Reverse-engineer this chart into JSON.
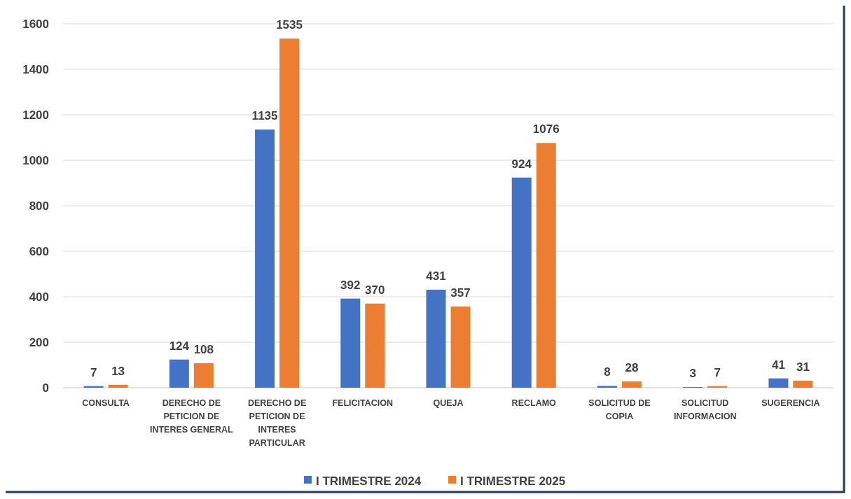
{
  "chart_data": {
    "type": "bar",
    "categories": [
      "CONSULTA",
      "DERECHO DE PETICION DE INTERES GENERAL",
      "DERECHO DE PETICION DE INTERES PARTICULAR",
      "FELICITACION",
      "QUEJA",
      "RECLAMO",
      "SOLICITUD DE COPIA",
      "SOLICITUD INFORMACION",
      "SUGERENCIA"
    ],
    "series": [
      {
        "name": "I TRIMESTRE 2024",
        "color": "#4472c4",
        "values": [
          7,
          124,
          1135,
          392,
          431,
          924,
          8,
          3,
          41
        ]
      },
      {
        "name": "I TRIMESTRE 2025",
        "color": "#ed7d31",
        "values": [
          13,
          108,
          1535,
          370,
          357,
          1076,
          28,
          7,
          31
        ]
      }
    ],
    "ylim": [
      0,
      1600
    ],
    "yticks": [
      0,
      200,
      400,
      600,
      800,
      1000,
      1200,
      1400,
      1600
    ],
    "grid": "y",
    "legend": "bottom",
    "data_labels": true
  }
}
